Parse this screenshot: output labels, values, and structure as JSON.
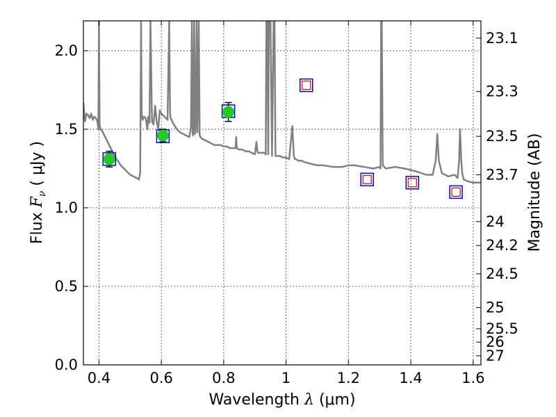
{
  "chart_data": {
    "type": "scatter",
    "title": "",
    "xlabel": "Wavelength",
    "xlabel_symbol": "λ",
    "xlabel_unit": "(μm)",
    "ylabel": "Flux",
    "ylabel_symbol": "F",
    "ylabel_sub": "ν",
    "ylabel_unit": "( μJy )",
    "y2label": "Magnitude (AB)",
    "xlim": [
      0.35,
      1.625
    ],
    "ylim": [
      0.0,
      2.19
    ],
    "grid": true,
    "xticks": [
      0.4,
      0.6,
      0.8,
      1.0,
      1.2,
      1.4,
      1.6
    ],
    "xtick_labels": [
      "0.4",
      "0.6",
      "0.8",
      "1",
      "1.2",
      "1.4",
      "1.6"
    ],
    "yticks": [
      0.0,
      0.5,
      1.0,
      1.5,
      2.0
    ],
    "ytick_labels": [
      "0.0",
      "0.5",
      "1.0",
      "1.5",
      "2.0"
    ],
    "y2ticks": [
      {
        "label": "23.1",
        "flux": 2.08
      },
      {
        "label": "23.3",
        "flux": 1.74
      },
      {
        "label": "23.5",
        "flux": 1.455
      },
      {
        "label": "23.7",
        "flux": 1.21
      },
      {
        "label": "24",
        "flux": 0.912
      },
      {
        "label": "24.2",
        "flux": 0.76
      },
      {
        "label": "24.5",
        "flux": 0.58
      },
      {
        "label": "25",
        "flux": 0.365
      },
      {
        "label": "25.5",
        "flux": 0.23
      },
      {
        "label": "26",
        "flux": 0.145
      },
      {
        "label": "27",
        "flux": 0.058
      }
    ],
    "series": [
      {
        "name": "model_template",
        "style": "line",
        "color": "#808080",
        "x": [
          0.35,
          0.355,
          0.36,
          0.365,
          0.37,
          0.375,
          0.38,
          0.385,
          0.39,
          0.395,
          0.398,
          0.4,
          0.402,
          0.405,
          0.41,
          0.42,
          0.43,
          0.44,
          0.45,
          0.46,
          0.47,
          0.48,
          0.49,
          0.5,
          0.51,
          0.52,
          0.528,
          0.532,
          0.535,
          0.537,
          0.54,
          0.545,
          0.55,
          0.555,
          0.558,
          0.562,
          0.565,
          0.57,
          0.575,
          0.58,
          0.585,
          0.59,
          0.595,
          0.6,
          0.61,
          0.62,
          0.625,
          0.628,
          0.63,
          0.64,
          0.65,
          0.66,
          0.67,
          0.68,
          0.69,
          0.695,
          0.698,
          0.7,
          0.702,
          0.705,
          0.708,
          0.71,
          0.713,
          0.716,
          0.72,
          0.723,
          0.726,
          0.73,
          0.74,
          0.75,
          0.76,
          0.77,
          0.78,
          0.79,
          0.8,
          0.81,
          0.82,
          0.83,
          0.838,
          0.84,
          0.842,
          0.85,
          0.86,
          0.87,
          0.88,
          0.89,
          0.9,
          0.905,
          0.908,
          0.91,
          0.92,
          0.93,
          0.935,
          0.937,
          0.94,
          0.943,
          0.945,
          0.95,
          0.955,
          0.96,
          0.963,
          0.966,
          0.968,
          0.97,
          0.98,
          0.99,
          1.0,
          1.01,
          1.02,
          1.025,
          1.028,
          1.03,
          1.04,
          1.05,
          1.06,
          1.08,
          1.1,
          1.12,
          1.15,
          1.18,
          1.2,
          1.22,
          1.25,
          1.28,
          1.3,
          1.303,
          1.305,
          1.307,
          1.31,
          1.32,
          1.35,
          1.38,
          1.4,
          1.42,
          1.45,
          1.47,
          1.48,
          1.485,
          1.49,
          1.5,
          1.52,
          1.54,
          1.55,
          1.555,
          1.558,
          1.562,
          1.565,
          1.57,
          1.58,
          1.6,
          1.625
        ],
        "y": [
          1.67,
          1.55,
          1.6,
          1.59,
          1.57,
          1.6,
          1.56,
          1.58,
          1.57,
          1.55,
          1.5,
          2.2,
          1.53,
          1.5,
          1.49,
          1.45,
          1.41,
          1.37,
          1.33,
          1.3,
          1.27,
          1.25,
          1.23,
          1.21,
          1.2,
          1.19,
          1.18,
          1.22,
          2.2,
          1.6,
          1.56,
          1.58,
          1.57,
          1.5,
          1.58,
          1.54,
          2.2,
          1.55,
          1.53,
          1.65,
          1.55,
          1.5,
          1.62,
          1.6,
          1.58,
          1.56,
          2.2,
          1.6,
          1.57,
          1.53,
          1.5,
          1.48,
          1.47,
          1.46,
          1.45,
          1.52,
          2.2,
          1.48,
          1.46,
          2.2,
          1.47,
          1.5,
          2.2,
          1.48,
          2.2,
          1.46,
          1.45,
          1.44,
          1.43,
          1.42,
          1.41,
          1.4,
          1.4,
          1.4,
          1.39,
          1.39,
          1.38,
          1.38,
          1.38,
          1.45,
          1.38,
          1.37,
          1.37,
          1.36,
          1.36,
          1.35,
          1.34,
          1.42,
          1.36,
          1.35,
          1.35,
          1.35,
          1.34,
          2.2,
          2.2,
          1.34,
          2.2,
          2.2,
          1.33,
          2.2,
          2.2,
          1.33,
          1.33,
          1.33,
          1.33,
          1.32,
          1.32,
          1.31,
          1.52,
          1.33,
          1.31,
          1.31,
          1.3,
          1.3,
          1.29,
          1.28,
          1.27,
          1.27,
          1.26,
          1.26,
          1.27,
          1.27,
          1.26,
          1.25,
          1.26,
          1.25,
          2.2,
          2.2,
          1.27,
          1.25,
          1.26,
          1.25,
          1.24,
          1.23,
          1.21,
          1.21,
          1.3,
          1.47,
          1.3,
          1.22,
          1.2,
          1.21,
          1.19,
          1.3,
          1.5,
          1.3,
          1.22,
          1.18,
          1.17,
          1.16,
          1.16
        ]
      },
      {
        "name": "observed_photometry",
        "style": "points",
        "color": "#22cc22",
        "x": [
          0.433,
          0.605,
          0.815
        ],
        "y": [
          1.31,
          1.46,
          1.61
        ],
        "yerr": [
          0.05,
          0.04,
          0.06
        ]
      },
      {
        "name": "model_bands",
        "style": "squares",
        "outer_color": "#0000dd",
        "inner_color": "#dd0000",
        "x": [
          0.433,
          0.605,
          0.815,
          1.065,
          1.26,
          1.405,
          1.545
        ],
        "y": [
          1.31,
          1.455,
          1.615,
          1.78,
          1.18,
          1.16,
          1.1
        ],
        "filled_inner": [
          false,
          false,
          false,
          true,
          true,
          true,
          true
        ]
      }
    ]
  }
}
